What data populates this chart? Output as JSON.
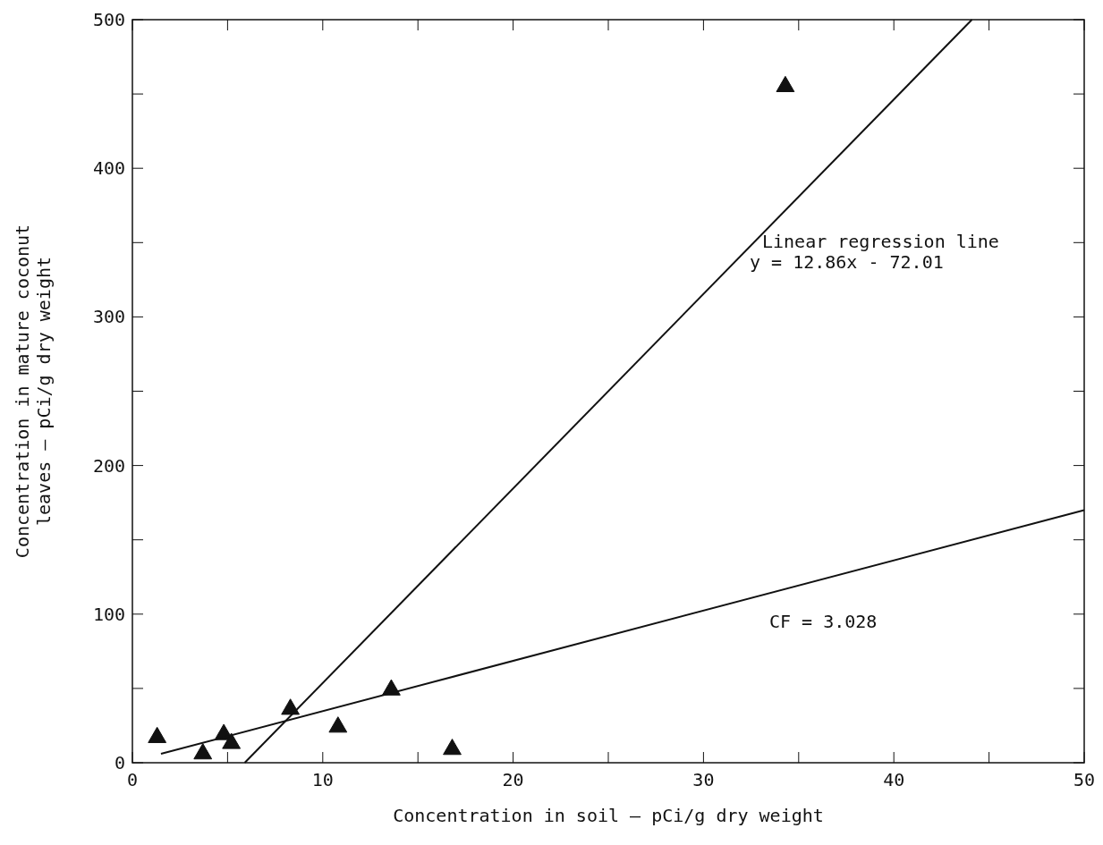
{
  "chart_data": {
    "type": "scatter",
    "xlabel": "Concentration in soil — pCi/g dry weight",
    "ylabel": "Concentration in mature coconut\nleaves — pCi/g dry weight",
    "xlim": [
      0,
      50
    ],
    "ylim": [
      0,
      500
    ],
    "xticks": [
      0,
      {
        "value": 5,
        "label": null
      },
      10,
      {
        "value": 15,
        "label": null
      },
      20,
      {
        "value": 25,
        "label": null
      },
      30,
      {
        "value": 35,
        "label": null
      },
      40,
      {
        "value": 45,
        "label": null
      },
      50
    ],
    "yticks": [
      0,
      {
        "value": 50,
        "label": null
      },
      100,
      {
        "value": 150,
        "label": null
      },
      200,
      {
        "value": 250,
        "label": null
      },
      300,
      {
        "value": 350,
        "label": null
      },
      400,
      {
        "value": 450,
        "label": null
      },
      500
    ],
    "grid": false,
    "series": [
      {
        "color": "#111111",
        "marker": "triangle",
        "x": [
          1.3,
          3.7,
          4.8,
          5.2,
          8.3,
          10.8,
          13.6,
          16.8,
          34.3
        ],
        "values": [
          17,
          6,
          19,
          13,
          36,
          24,
          49,
          9,
          455
        ]
      },
      {
        "type": "line",
        "color": "#111111",
        "line_style": "solid",
        "x": [
          5.9,
          44.1
        ],
        "values": [
          0,
          500
        ]
      },
      {
        "type": "line",
        "color": "#111111",
        "line_style": "solid",
        "x": [
          1.5,
          50
        ],
        "values": [
          6,
          170
        ]
      }
    ],
    "annotations": [
      "Linear regression line",
      "y = 12.86x - 72.01",
      "CF = 3.028"
    ]
  }
}
